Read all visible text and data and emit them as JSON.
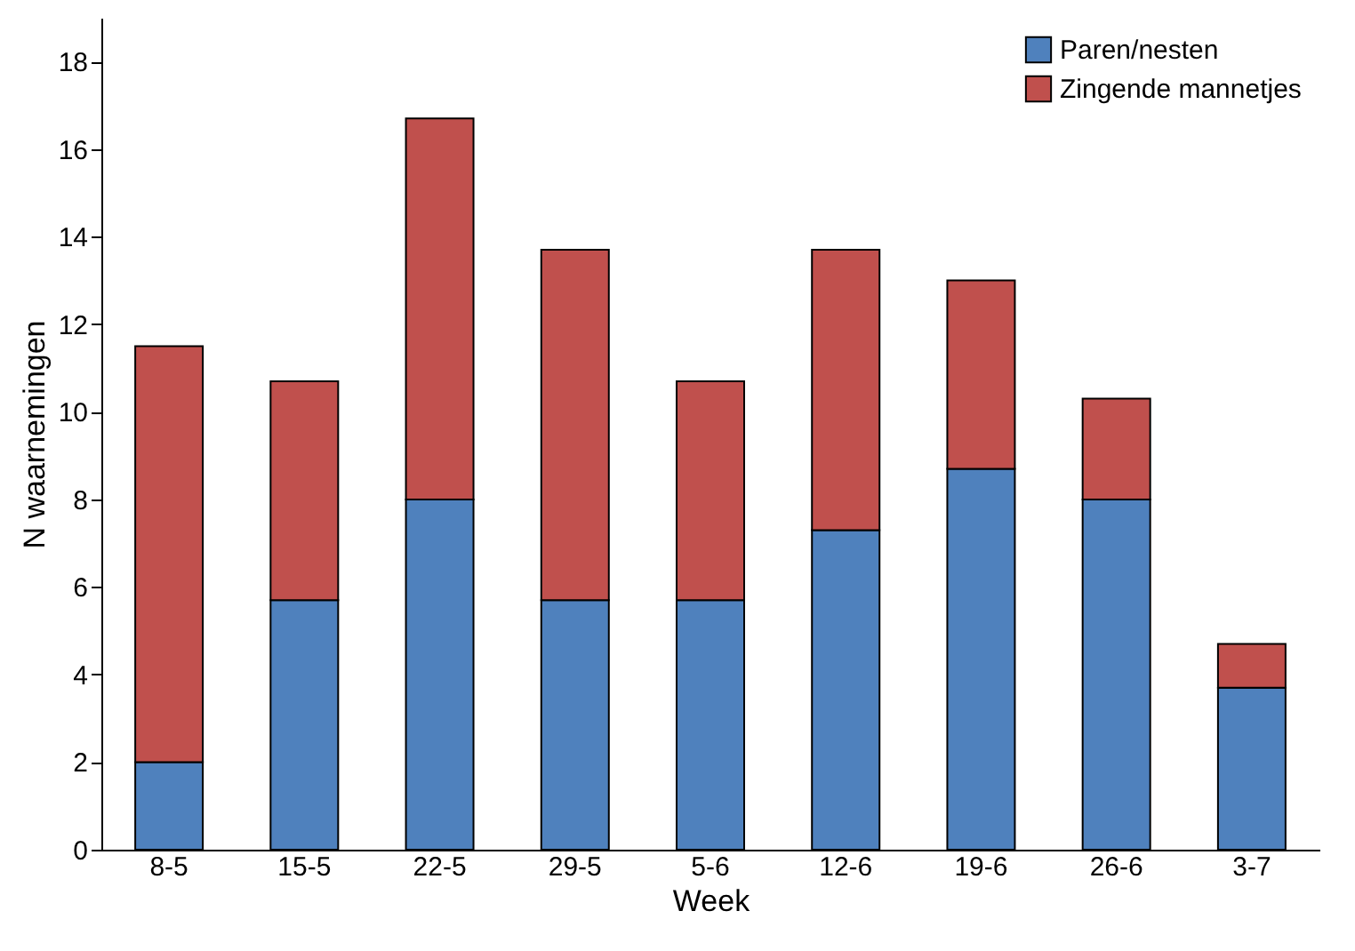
{
  "chart_data": {
    "type": "bar",
    "stacked": true,
    "xlabel": "Week",
    "ylabel": "N waarnemingen",
    "categories": [
      "8-5",
      "15-5",
      "22-5",
      "29-5",
      "5-6",
      "12-6",
      "19-6",
      "26-6",
      "3-7"
    ],
    "series": [
      {
        "name": "Paren/nesten",
        "color": "#4f81bd",
        "values": [
          2,
          5.7,
          8,
          5.7,
          5.7,
          7.3,
          8.7,
          8,
          3.7
        ]
      },
      {
        "name": "Zingende mannetjes",
        "color": "#c0504d",
        "values": [
          9.5,
          5,
          8.7,
          8,
          5,
          6.4,
          4.3,
          2.3,
          1
        ]
      }
    ],
    "ylim": [
      0,
      19
    ],
    "yticks": [
      0,
      2,
      4,
      6,
      8,
      10,
      12,
      14,
      16,
      18
    ],
    "grid": false,
    "legend": "top right"
  }
}
